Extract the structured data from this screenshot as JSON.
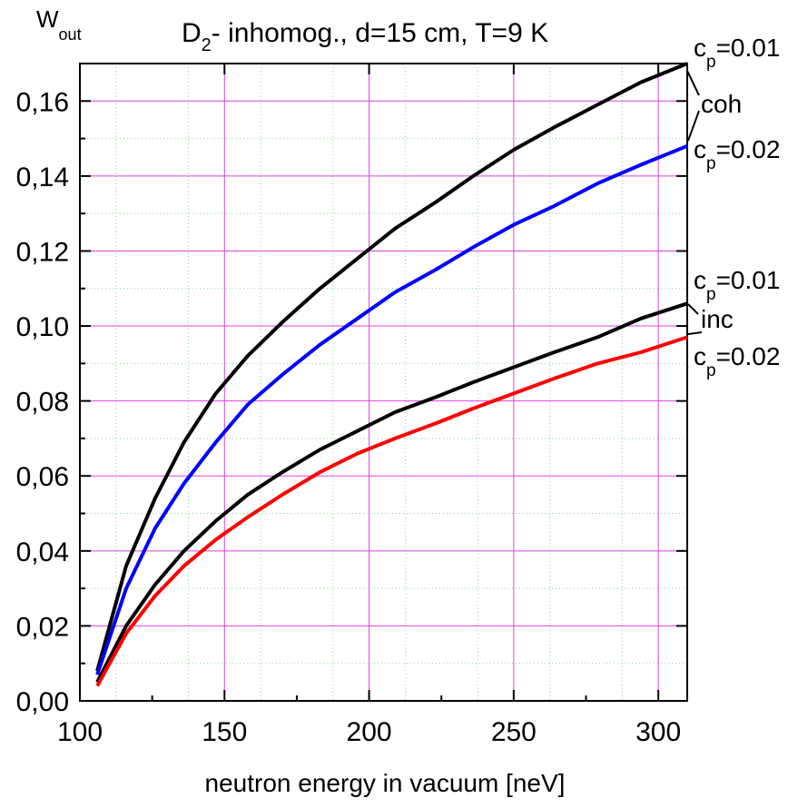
{
  "chart_data": {
    "type": "line",
    "title": {
      "pre": "D",
      "sub": "2",
      "post": "- inhomog., d=15 cm, T=9 K"
    },
    "ylabel": {
      "main": "W",
      "sub": "out"
    },
    "xlabel": "neutron energy in vacuum [neV]",
    "xlim": [
      100,
      310
    ],
    "ylim": [
      0,
      0.17
    ],
    "x_ticks": [
      "100",
      "150",
      "200",
      "250",
      "300"
    ],
    "y_ticks": [
      "0,00",
      "0,02",
      "0,04",
      "0,06",
      "0,08",
      "0,10",
      "0,12",
      "0,14",
      "0,16"
    ],
    "grid": true,
    "series": [
      {
        "color": "#000000",
        "x": [
          106,
          116,
          126,
          136,
          147,
          158,
          170,
          183,
          196,
          209,
          223,
          236,
          250,
          264,
          279,
          294,
          310
        ],
        "y": [
          0.008,
          0.036,
          0.054,
          0.069,
          0.082,
          0.092,
          0.101,
          0.11,
          0.118,
          0.126,
          0.133,
          0.14,
          0.147,
          0.153,
          0.159,
          0.165,
          0.17
        ]
      },
      {
        "color": "#0000ff",
        "x": [
          106,
          116,
          126,
          136,
          147,
          158,
          170,
          183,
          196,
          209,
          223,
          236,
          250,
          264,
          279,
          294,
          310
        ],
        "y": [
          0.007,
          0.03,
          0.046,
          0.058,
          0.069,
          0.079,
          0.087,
          0.095,
          0.102,
          0.109,
          0.115,
          0.121,
          0.127,
          0.132,
          0.138,
          0.143,
          0.148
        ]
      },
      {
        "color": "#000000",
        "x": [
          106,
          116,
          126,
          136,
          147,
          158,
          170,
          183,
          196,
          209,
          223,
          236,
          250,
          264,
          279,
          294,
          310
        ],
        "y": [
          0.005,
          0.02,
          0.031,
          0.04,
          0.048,
          0.055,
          0.061,
          0.067,
          0.072,
          0.077,
          0.081,
          0.085,
          0.089,
          0.093,
          0.097,
          0.102,
          0.106
        ]
      },
      {
        "color": "#ff0000",
        "x": [
          106,
          116,
          126,
          136,
          147,
          158,
          170,
          183,
          196,
          209,
          223,
          236,
          250,
          264,
          279,
          294,
          310
        ],
        "y": [
          0.004,
          0.018,
          0.028,
          0.036,
          0.043,
          0.049,
          0.055,
          0.061,
          0.066,
          0.07,
          0.074,
          0.078,
          0.082,
          0.086,
          0.09,
          0.093,
          0.097
        ]
      }
    ],
    "annotations": {
      "coh_label": "coh",
      "inc_label": "inc",
      "cp_base": "c",
      "cp_sub": "p",
      "cp_val_1": "=0.01",
      "cp_val_2": "=0.02"
    }
  }
}
